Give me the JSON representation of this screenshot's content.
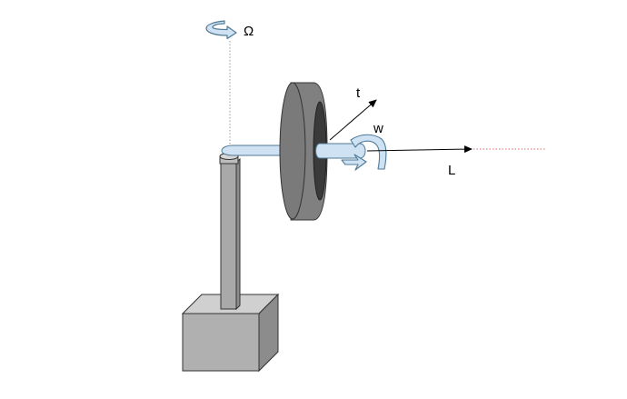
{
  "labels": {
    "omega": "Ω",
    "t": "t",
    "w": "w",
    "L": "L"
  },
  "colors": {
    "arrow_fill": "#cfe2f3",
    "arrow_stroke": "#4f7a96",
    "tire": "#808080",
    "tire_dark": "#3a3a3a",
    "column": "#a9a9a9",
    "base_front": "#b0b0b0",
    "base_top": "#d0d0d0",
    "base_side": "#8c8c8c",
    "axis_dotted": "#999999",
    "axis_red": "#e06666"
  }
}
